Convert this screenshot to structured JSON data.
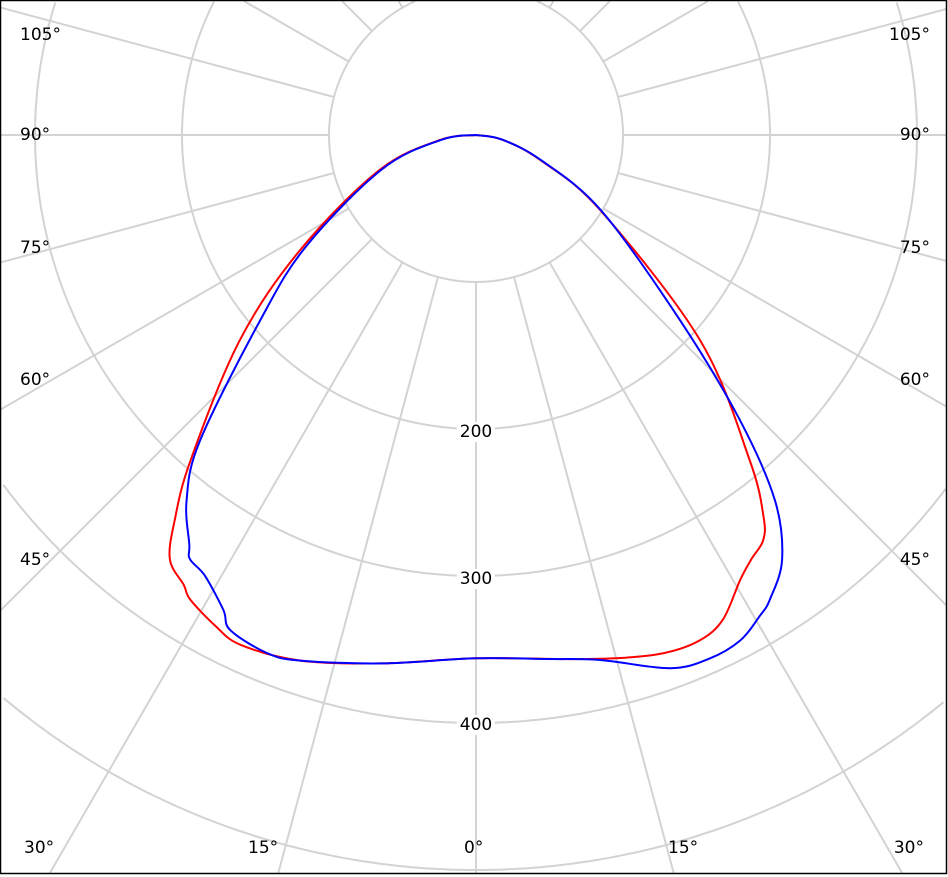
{
  "chart_data": {
    "type": "polar-line",
    "title": "",
    "radial_axis": {
      "ticks": [
        200,
        300,
        400
      ],
      "grid_circles": [
        100,
        200,
        300,
        400,
        500,
        600
      ],
      "range": [
        0,
        600
      ]
    },
    "angular_axis": {
      "zero": "bottom",
      "grid_step_deg": 15,
      "left_labels": [
        "105°",
        "90°",
        "75°",
        "60°",
        "45°",
        "30°"
      ],
      "bottom_labels": [
        "30°",
        "15°",
        "0°",
        "15°",
        "30°"
      ],
      "right_labels": [
        "105°",
        "90°",
        "75°",
        "60°",
        "45°",
        "30°"
      ]
    },
    "grid": true,
    "series": [
      {
        "color": "#ff0000",
        "points": [
          [
            -90,
            0
          ],
          [
            -82,
            25
          ],
          [
            -70,
            70
          ],
          [
            -56.8,
            143
          ],
          [
            -49,
            213
          ],
          [
            -41.3,
            294
          ],
          [
            -38,
            333
          ],
          [
            -35.8,
            356
          ],
          [
            -33,
            365
          ],
          [
            -31.6,
            371
          ],
          [
            -28,
            378
          ],
          [
            -24.8,
            382
          ],
          [
            -18.5,
            377
          ],
          [
            -10,
            365
          ],
          [
            0,
            356
          ],
          [
            10,
            362
          ],
          [
            15.4,
            369
          ],
          [
            20,
            375
          ],
          [
            23.9,
            376
          ],
          [
            27,
            370
          ],
          [
            30.7,
            352
          ],
          [
            33,
            344
          ],
          [
            35.3,
            338
          ],
          [
            37,
            325
          ],
          [
            40.1,
            289
          ],
          [
            47.5,
            207
          ],
          [
            58.8,
            99
          ],
          [
            68.7,
            47
          ],
          [
            80,
            18
          ],
          [
            90,
            0
          ]
        ]
      },
      {
        "color": "#0000ff",
        "points": [
          [
            -90,
            0
          ],
          [
            -82,
            24
          ],
          [
            -70,
            68
          ],
          [
            -56.8,
            138
          ],
          [
            -49.4,
            193
          ],
          [
            -42.1,
            280
          ],
          [
            -38.4,
            317
          ],
          [
            -35,
            340
          ],
          [
            -34,
            348
          ],
          [
            -31.6,
            352
          ],
          [
            -28,
            366
          ],
          [
            -26.4,
            376
          ],
          [
            -22,
            380
          ],
          [
            -18.5,
            377
          ],
          [
            -10,
            365
          ],
          [
            0,
            356
          ],
          [
            8,
            360
          ],
          [
            13.3,
            367
          ],
          [
            20,
            386
          ],
          [
            24,
            390
          ],
          [
            27.6,
            388
          ],
          [
            30.5,
            380
          ],
          [
            32.3,
            374
          ],
          [
            35.8,
            356
          ],
          [
            39.3,
            321
          ],
          [
            42.8,
            264
          ],
          [
            47.8,
            187
          ],
          [
            58.8,
            100
          ],
          [
            68.7,
            48
          ],
          [
            80,
            18
          ],
          [
            90,
            0
          ]
        ]
      }
    ]
  }
}
